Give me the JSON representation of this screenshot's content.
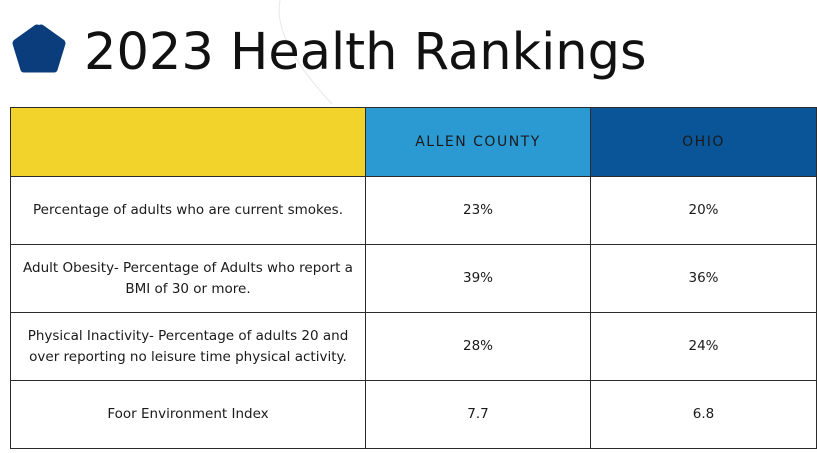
{
  "page": {
    "title": "2023 Health Rankings",
    "brand_colors": {
      "logo": "#0b3d7c",
      "header_metric": "#f2d32b",
      "header_county": "#2b9ad3",
      "header_state": "#0a5597"
    },
    "logo_icon": "pentagon-logo-icon"
  },
  "table": {
    "headers": {
      "metric": "",
      "county": "ALLEN COUNTY",
      "state": "OHIO"
    },
    "rows": [
      {
        "metric": "Percentage of adults who are current smokes.",
        "county": "23%",
        "state": "20%"
      },
      {
        "metric": "Adult Obesity- Percentage of Adults who report a BMI of 30 or more.",
        "county": "39%",
        "state": "36%"
      },
      {
        "metric": "Physical Inactivity- Percentage of adults 20 and over reporting no leisure time physical activity.",
        "county": "28%",
        "state": "24%"
      },
      {
        "metric": "Foor Environment Index",
        "county": "7.7",
        "state": "6.8"
      }
    ]
  }
}
